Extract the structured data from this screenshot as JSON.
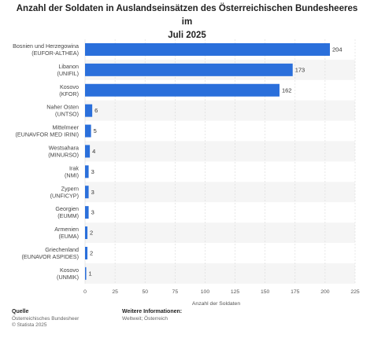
{
  "header": {
    "title_line1": "Anzahl der Soldaten in Auslandseinsätzen des Österreichischen Bundesheeres im",
    "title_line2": "Juli 2025"
  },
  "footer": {
    "source_label": "Quelle",
    "source_line1": "Österreichisches Bundesheer",
    "source_line2": "© Statista 2025",
    "info_label": "Weitere Informationen:",
    "info_line1": "Weltweit; Österreich"
  },
  "colors": {
    "bar": "#2a6fdb",
    "stripe": "#f5f5f5",
    "grid": "#d9d9d9"
  },
  "chart_data": {
    "type": "bar",
    "orientation": "horizontal",
    "title": "Anzahl der Soldaten in Auslandseinsätzen des Österreichischen Bundesheeres im Juli 2025",
    "xlabel": "Anzahl der Soldaten",
    "ylabel": "",
    "xlim": [
      0,
      225
    ],
    "xticks": [
      0,
      25,
      50,
      75,
      100,
      125,
      150,
      175,
      200,
      225
    ],
    "grid": true,
    "categories": [
      [
        "Bosnien und Herzegowina",
        "(EUFOR-ALTHEA)"
      ],
      [
        "Libanon",
        "(UNIFIL)"
      ],
      [
        "Kosovo",
        "(KFOR)"
      ],
      [
        "Naher Osten",
        "(UNTSO)"
      ],
      [
        "Mittelmeer",
        "(EUNAVFOR MED IRINI)"
      ],
      [
        "Westsahara",
        "(MINURSO)"
      ],
      [
        "Irak",
        "(NMI)"
      ],
      [
        "Zypern",
        "(UNFICYP)"
      ],
      [
        "Georgien",
        "(EUMM)"
      ],
      [
        "Armenien",
        "(EUMA)"
      ],
      [
        "Griechenland",
        "(EUNAVOR ASPIDES)"
      ],
      [
        "Kosovo",
        "(UNMIK)"
      ]
    ],
    "values": [
      204,
      173,
      162,
      6,
      5,
      4,
      3,
      3,
      3,
      2,
      2,
      1
    ]
  }
}
